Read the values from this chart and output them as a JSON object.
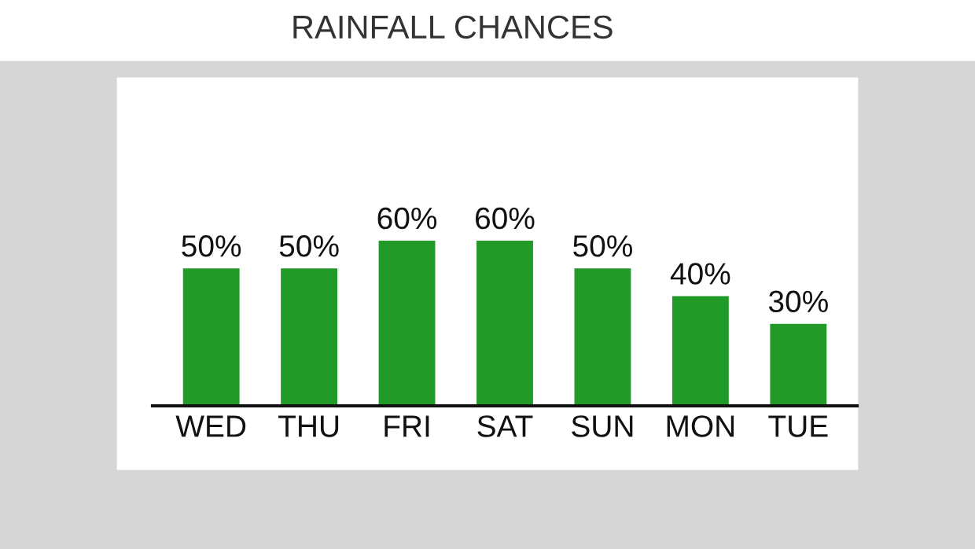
{
  "chart_data": {
    "type": "bar",
    "title": "RAINFALL CHANCES",
    "categories": [
      "WED",
      "THU",
      "FRI",
      "SAT",
      "SUN",
      "MON",
      "TUE"
    ],
    "values": [
      50,
      50,
      60,
      60,
      50,
      40,
      30
    ],
    "value_labels": [
      "50%",
      "50%",
      "60%",
      "60%",
      "50%",
      "40%",
      "30%"
    ],
    "color": "#229a27",
    "tick_labels": "x",
    "grid": false,
    "legend": false
  }
}
